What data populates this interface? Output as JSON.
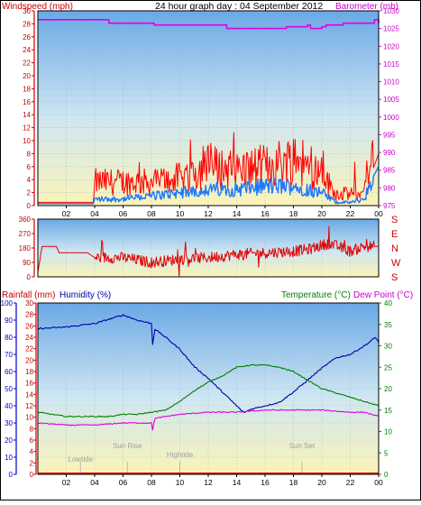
{
  "header": {
    "title": "24 hour graph day : 04 September 2012",
    "left_label": "Windspeed (mph)",
    "right_label": "Barometer (mb)"
  },
  "colors": {
    "wind": "#ff0000",
    "wind_avg": "#1e78ff",
    "pressure": "#e000e0",
    "direction": "#e00000",
    "humidity": "#0000aa",
    "temperature": "#008000",
    "dewpoint": "#e000e0",
    "rain": "#e00000",
    "axis_blue": "#0000cc",
    "axis_green": "#008000",
    "axis_red": "#cc0000",
    "axis_magenta": "#cc00cc",
    "sky_top": "#6aa9e6",
    "sky_mid": "#cfe6f2",
    "sky_bottom": "#fbf4b8"
  },
  "chart_data": [
    {
      "type": "line",
      "name": "wind-pressure",
      "title": "24 hour graph day : 04 September 2012",
      "xlabel": "",
      "ylabel_left": "Windspeed (mph)",
      "ylabel_right": "Barometer (mb)",
      "x_ticks": [
        "02",
        "04",
        "06",
        "08",
        "10",
        "12",
        "14",
        "16",
        "18",
        "20",
        "22",
        "00"
      ],
      "xlim": [
        0,
        24
      ],
      "ylim_left": [
        0,
        30
      ],
      "ylim_right": [
        975,
        1030
      ],
      "y_ticks_left": [
        0,
        2,
        4,
        6,
        8,
        10,
        12,
        14,
        16,
        18,
        20,
        22,
        24,
        26,
        28,
        30
      ],
      "y_ticks_right": [
        975,
        980,
        985,
        990,
        995,
        1000,
        1005,
        1010,
        1015,
        1020,
        1025,
        1030
      ],
      "series": [
        {
          "axis": "right",
          "x": [
            0,
            4.8,
            5.0,
            8.0,
            8.2,
            13.0,
            13.3,
            16.5,
            17.5,
            19.0,
            19.2,
            20.0,
            20.3,
            21.5,
            23.5,
            23.7,
            24.0
          ],
          "values": [
            1027.5,
            1027.5,
            1026.5,
            1026.5,
            1026.0,
            1026.0,
            1025.0,
            1025.0,
            1025.5,
            1026.0,
            1025.0,
            1025.5,
            1026.0,
            1026.5,
            1026.5,
            1027.5,
            1026.5
          ]
        },
        {
          "axis": "left",
          "x": [
            0,
            3.9,
            4.0,
            6,
            8,
            10,
            12,
            14,
            16,
            18,
            20,
            21,
            22,
            23,
            23.5,
            24
          ],
          "values": [
            0.5,
            0.5,
            3,
            3,
            3,
            3.5,
            5,
            4.5,
            5,
            6,
            4,
            1.5,
            1.5,
            1.5,
            5,
            8
          ]
        },
        {
          "axis": "left",
          "x": [
            0,
            3.9,
            4.0,
            6,
            8,
            10,
            12,
            14,
            16,
            18,
            20,
            21,
            22,
            23,
            23.5,
            24
          ],
          "values": [
            0.3,
            0.3,
            1,
            1,
            1.5,
            2,
            2.5,
            2.5,
            3,
            3,
            2,
            0.5,
            0.5,
            1,
            4,
            6
          ]
        }
      ]
    },
    {
      "type": "line",
      "name": "wind-direction",
      "xlim": [
        0,
        24
      ],
      "ylim_left": [
        0,
        360
      ],
      "y_ticks_left": [
        0,
        90,
        180,
        270,
        360
      ],
      "compass_labels": [
        "S",
        "E",
        "N",
        "W",
        "S"
      ],
      "series": [
        {
          "x": [
            0,
            0.3,
            1.3,
            1.5,
            3.5,
            4.0,
            6,
            8,
            10,
            12,
            14,
            16,
            18,
            19,
            20.5,
            22,
            23,
            24
          ],
          "values": [
            30,
            190,
            190,
            150,
            150,
            120,
            120,
            90,
            110,
            120,
            140,
            150,
            160,
            170,
            210,
            160,
            190,
            190
          ]
        }
      ]
    },
    {
      "type": "line",
      "name": "temp-humidity-rain",
      "ylabel_left_1": "Rainfall (mm)",
      "ylabel_left_2": "Humidity (%)",
      "ylabel_right_1": "Temperature (°C)",
      "ylabel_right_2": "Dew Point (°C)",
      "xlim": [
        0,
        24
      ],
      "ylim_rain": [
        0,
        30
      ],
      "ylim_humidity": [
        0,
        100
      ],
      "ylim_temp": [
        0,
        40
      ],
      "y_ticks_rain": [
        0,
        2,
        4,
        6,
        8,
        10,
        12,
        14,
        16,
        18,
        20,
        22,
        24,
        26,
        28,
        30
      ],
      "y_ticks_humidity": [
        0,
        10,
        20,
        30,
        40,
        50,
        60,
        70,
        80,
        90,
        100
      ],
      "y_ticks_temp": [
        0,
        5,
        10,
        15,
        20,
        25,
        30,
        35,
        40
      ],
      "x_ticks": [
        "02",
        "04",
        "06",
        "08",
        "10",
        "12",
        "14",
        "16",
        "18",
        "20",
        "22",
        "00"
      ],
      "annotations": [
        {
          "label": "Lowtide",
          "x": 3.0
        },
        {
          "label": "Sun Rise",
          "x": 6.3
        },
        {
          "label": "Hightide",
          "x": 10.0
        },
        {
          "label": "Sun Set",
          "x": 18.6
        }
      ],
      "series": [
        {
          "name": "Humidity (%)",
          "axis": "humidity",
          "x": [
            0,
            2,
            4,
            6,
            7,
            8,
            8.1,
            8.2,
            9,
            10,
            11,
            12,
            13,
            14,
            14.5,
            15,
            16,
            17,
            18,
            19,
            20,
            21,
            22,
            23,
            23.8,
            24
          ],
          "values": [
            85,
            86,
            88,
            93,
            90,
            88,
            73,
            85,
            80,
            73,
            63,
            56,
            48,
            40,
            36,
            38,
            40,
            42,
            48,
            55,
            62,
            68,
            70,
            75,
            80,
            77
          ]
        },
        {
          "name": "Temperature (°C)",
          "axis": "temp",
          "x": [
            0,
            1,
            2,
            3,
            4,
            5,
            6,
            7,
            8,
            9,
            10,
            11,
            12,
            13,
            14,
            15,
            16,
            17,
            18,
            19,
            20,
            21,
            22,
            23,
            24
          ],
          "values": [
            14.5,
            14,
            13.5,
            13.5,
            13.5,
            13.5,
            14,
            14,
            14.5,
            15,
            17,
            19.5,
            21.5,
            23,
            25,
            25.5,
            25.5,
            25,
            24,
            22,
            20,
            19,
            18,
            17,
            16
          ]
        },
        {
          "name": "Dew Point (°C)",
          "axis": "temp",
          "x": [
            0,
            2,
            4,
            6,
            8,
            8.1,
            8.2,
            9,
            10,
            12,
            14,
            16,
            18,
            20,
            22,
            23,
            24
          ],
          "values": [
            12,
            11.5,
            11.5,
            12,
            12,
            10,
            13,
            13.5,
            14,
            14.5,
            14.5,
            15,
            15,
            15,
            14.5,
            14.5,
            13.5
          ]
        },
        {
          "name": "Rainfall (mm)",
          "axis": "rain",
          "x": [
            0,
            24
          ],
          "values": [
            0,
            0
          ]
        }
      ]
    }
  ]
}
